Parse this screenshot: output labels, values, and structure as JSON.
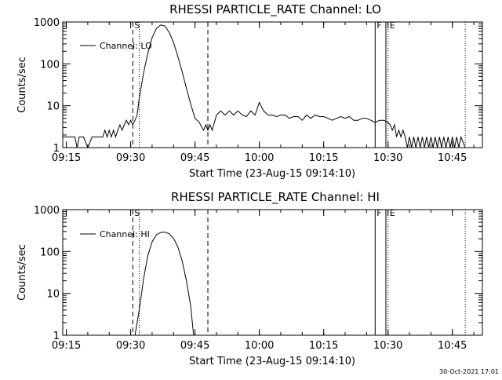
{
  "footer": {
    "timestamp": "30-Oct-2021 17:01"
  },
  "chart_data": [
    {
      "type": "line",
      "title": "RHESSI PARTICLE_RATE Channel: LO",
      "xlabel": "Start Time (23-Aug-15 09:14:10)",
      "ylabel": "Counts/sec",
      "yscale": "log",
      "ylim": [
        1,
        1000
      ],
      "xlim": [
        "09:14:10",
        "10:52:00"
      ],
      "x_ticks": [
        "09:15",
        "09:30",
        "09:45",
        "10:00",
        "10:15",
        "10:30",
        "10:45"
      ],
      "y_ticks": [
        "1",
        "10",
        "100",
        "1000"
      ],
      "grid": false,
      "legend": {
        "position": "top-left",
        "entries": [
          "Channel: LO"
        ]
      },
      "markers": [
        {
          "time": "09:30:30",
          "style": "dashed",
          "label": "S"
        },
        {
          "time": "09:32:00",
          "style": "dotted",
          "label": ""
        },
        {
          "time": "09:48:00",
          "style": "dashed",
          "label": ""
        },
        {
          "time": "10:27:00",
          "style": "solid",
          "label": "F"
        },
        {
          "time": "10:29:30",
          "style": "solid",
          "label": ""
        },
        {
          "time": "10:30:00",
          "style": "dotted",
          "label": "E"
        },
        {
          "time": "10:48:00",
          "style": "dotted",
          "label": ""
        }
      ],
      "series": [
        {
          "name": "Channel: LO",
          "x": [
            "09:14:10",
            "09:17:00",
            "09:17:30",
            "09:18:00",
            "09:19:00",
            "09:20:00",
            "09:21:00",
            "09:23:30",
            "09:24:00",
            "09:24:30",
            "09:25:00",
            "09:25:30",
            "09:26:00",
            "09:26:30",
            "09:27:00",
            "09:27:30",
            "09:28:00",
            "09:28:30",
            "09:29:00",
            "09:29:30",
            "09:30:00",
            "09:30:30",
            "09:31:00",
            "09:31:30",
            "09:32:00",
            "09:33:00",
            "09:34:00",
            "09:35:00",
            "09:36:00",
            "09:37:00",
            "09:38:00",
            "09:39:00",
            "09:40:00",
            "09:41:00",
            "09:42:00",
            "09:43:00",
            "09:44:00",
            "09:45:00",
            "09:46:00",
            "09:46:30",
            "09:47:00",
            "09:47:30",
            "09:48:00",
            "09:48:30",
            "09:49:00",
            "09:50:00",
            "09:51:00",
            "09:52:00",
            "09:53:00",
            "09:54:00",
            "09:55:00",
            "09:56:00",
            "09:57:00",
            "09:58:00",
            "09:59:00",
            "10:00:00",
            "10:01:00",
            "10:02:00",
            "10:03:00",
            "10:04:00",
            "10:05:00",
            "10:06:00",
            "10:07:00",
            "10:08:00",
            "10:09:00",
            "10:10:00",
            "10:11:00",
            "10:12:00",
            "10:13:00",
            "10:14:00",
            "10:15:00",
            "10:16:00",
            "10:17:00",
            "10:18:00",
            "10:19:00",
            "10:20:00",
            "10:21:00",
            "10:22:00",
            "10:23:00",
            "10:24:00",
            "10:25:00",
            "10:26:00",
            "10:27:00",
            "10:28:00",
            "10:29:00",
            "10:30:00",
            "10:30:30",
            "10:31:00",
            "10:31:30",
            "10:32:00",
            "10:32:30",
            "10:33:00",
            "10:33:30",
            "10:34:00",
            "10:34:30",
            "10:35:00",
            "10:35:30",
            "10:36:00",
            "10:36:30",
            "10:37:00",
            "10:37:30",
            "10:38:00",
            "10:38:30",
            "10:39:00",
            "10:39:30",
            "10:40:00",
            "10:40:30",
            "10:41:00",
            "10:41:30",
            "10:42:00",
            "10:42:30",
            "10:43:00",
            "10:43:30",
            "10:44:00",
            "10:44:30",
            "10:45:00",
            "10:45:30",
            "10:46:00",
            "10:46:30",
            "10:47:00",
            "10:48:00"
          ],
          "y": [
            1.8,
            1.8,
            1,
            1.8,
            1.8,
            1,
            1.8,
            1.8,
            2.6,
            1.8,
            2.6,
            1.8,
            2.6,
            1.8,
            2.6,
            3.5,
            2.6,
            3.5,
            4.5,
            3.5,
            4.5,
            3.5,
            4.5,
            6,
            15,
            60,
            180,
            420,
            700,
            850,
            800,
            560,
            320,
            150,
            65,
            26,
            11,
            5,
            4,
            3.2,
            2.6,
            3.5,
            2.6,
            3.5,
            2.6,
            6,
            7.5,
            6,
            7.5,
            6,
            7.5,
            6,
            5.5,
            7.5,
            6,
            12,
            7.5,
            6,
            6,
            5.5,
            6,
            6,
            5,
            5.5,
            5.5,
            4.5,
            6,
            5,
            6,
            5.5,
            5.5,
            5,
            4.5,
            5,
            5.5,
            5,
            5.5,
            4.5,
            4.5,
            5,
            5,
            4.5,
            4,
            4.5,
            4.5,
            4,
            3.5,
            2.6,
            3.5,
            1.8,
            2.6,
            1.8,
            2.6,
            1.8,
            1,
            1.8,
            1,
            1.8,
            1,
            1.8,
            1,
            1.8,
            1,
            1.8,
            1,
            1.8,
            1,
            1.8,
            1,
            1.8,
            1,
            1.8,
            1,
            1.8,
            1,
            1.8,
            1,
            1.8,
            1,
            1.8,
            1
          ]
        }
      ]
    },
    {
      "type": "line",
      "title": "RHESSI PARTICLE_RATE Channel: HI",
      "xlabel": "Start Time (23-Aug-15 09:14:10)",
      "ylabel": "Counts/sec",
      "yscale": "log",
      "ylim": [
        1,
        1000
      ],
      "xlim": [
        "09:14:10",
        "10:52:00"
      ],
      "x_ticks": [
        "09:15",
        "09:30",
        "09:45",
        "10:00",
        "10:15",
        "10:30",
        "10:45"
      ],
      "y_ticks": [
        "1",
        "10",
        "100",
        "1000"
      ],
      "grid": false,
      "legend": {
        "position": "top-left",
        "entries": [
          "Channel: HI"
        ]
      },
      "markers": [
        {
          "time": "09:30:30",
          "style": "dashed",
          "label": "S"
        },
        {
          "time": "09:32:00",
          "style": "dotted",
          "label": ""
        },
        {
          "time": "09:48:00",
          "style": "dashed",
          "label": ""
        },
        {
          "time": "10:27:00",
          "style": "solid",
          "label": "F"
        },
        {
          "time": "10:29:30",
          "style": "solid",
          "label": ""
        },
        {
          "time": "10:30:00",
          "style": "dotted",
          "label": "E"
        },
        {
          "time": "10:48:00",
          "style": "dotted",
          "label": ""
        }
      ],
      "series": [
        {
          "name": "Channel: HI",
          "x": [
            "09:31:00",
            "09:32:00",
            "09:33:00",
            "09:34:00",
            "09:35:00",
            "09:36:00",
            "09:37:00",
            "09:38:00",
            "09:39:00",
            "09:40:00",
            "09:41:00",
            "09:42:00",
            "09:43:00",
            "09:44:00",
            "09:44:40"
          ],
          "y": [
            1,
            4,
            22,
            80,
            170,
            250,
            285,
            290,
            265,
            205,
            130,
            60,
            20,
            5,
            1
          ]
        }
      ]
    }
  ]
}
